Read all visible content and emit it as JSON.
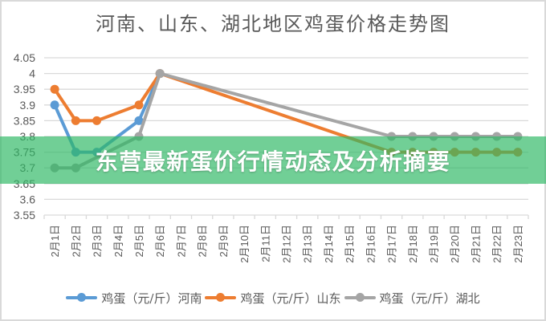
{
  "banner": {
    "text": "东营最新蛋价行情动态及分析摘要"
  },
  "chart_data": {
    "type": "line",
    "title": "河南、山东、湖北地区鸡蛋价格走势图",
    "xlabel": "",
    "ylabel": "",
    "ylim": [
      3.55,
      4.05
    ],
    "yticks": [
      "4.05",
      "4",
      "3.95",
      "3.9",
      "3.85",
      "3.8",
      "3.75",
      "3.7",
      "3.65",
      "3.6",
      "3.55"
    ],
    "grid": true,
    "legend_position": "bottom",
    "categories": [
      "2月1日",
      "2月2日",
      "2月3日",
      "2月4日",
      "2月5日",
      "2月6日",
      "2月7日",
      "2月8日",
      "2月9日",
      "2月10日",
      "2月11日",
      "2月12日",
      "2月13日",
      "2月14日",
      "2月15日",
      "2月16日",
      "2月17日",
      "2月18日",
      "2月19日",
      "2月20日",
      "2月21日",
      "2月22日",
      "2月23日"
    ],
    "series": [
      {
        "name": "鸡蛋（元/斤）河南",
        "color": "#5b9bd5",
        "values": [
          3.9,
          3.75,
          3.75,
          null,
          3.85,
          4.0,
          null,
          null,
          null,
          null,
          null,
          null,
          null,
          null,
          null,
          null,
          null,
          null,
          null,
          null,
          null,
          null,
          null
        ]
      },
      {
        "name": "鸡蛋（元/斤）山东",
        "color": "#ed7d31",
        "values": [
          3.95,
          3.85,
          3.85,
          null,
          3.9,
          4.0,
          null,
          null,
          null,
          null,
          null,
          null,
          null,
          null,
          null,
          null,
          3.75,
          3.75,
          3.75,
          3.75,
          3.75,
          3.75,
          3.75
        ]
      },
      {
        "name": "鸡蛋（元/斤）湖北",
        "color": "#a5a5a5",
        "values": [
          3.7,
          3.7,
          null,
          null,
          3.8,
          4.0,
          null,
          null,
          null,
          null,
          null,
          null,
          null,
          null,
          null,
          null,
          3.8,
          3.8,
          3.8,
          3.8,
          3.8,
          3.8,
          3.8
        ]
      }
    ]
  }
}
